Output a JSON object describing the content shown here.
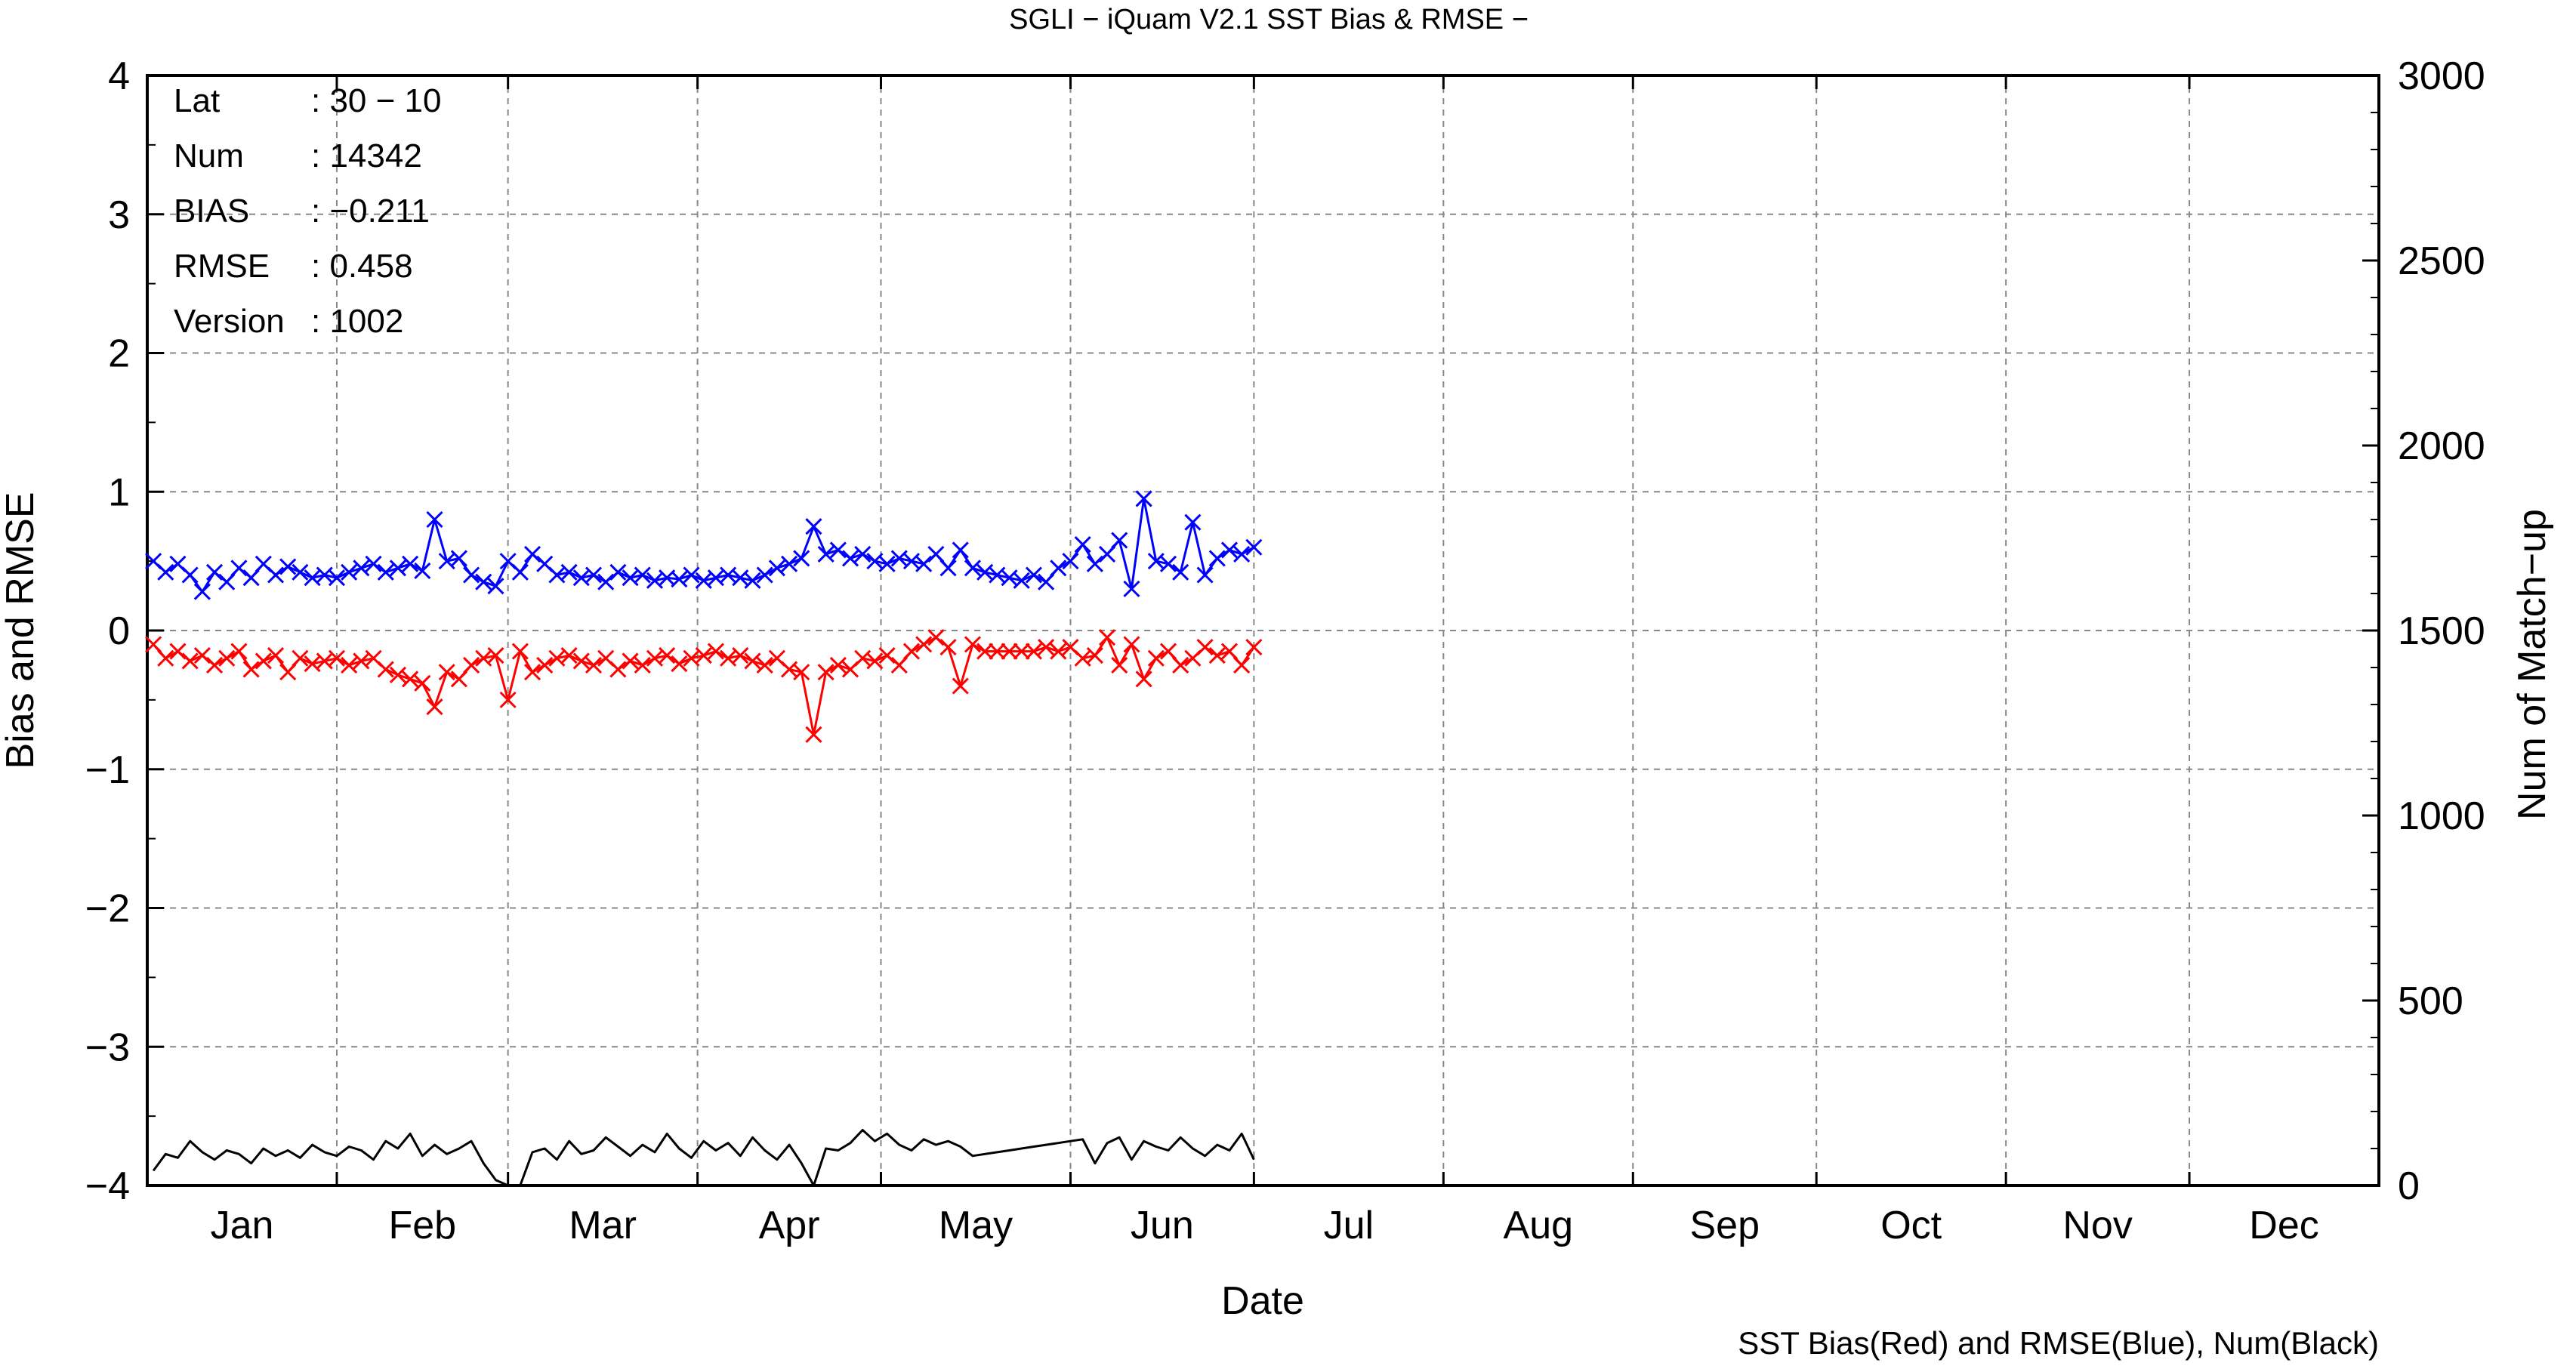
{
  "chart_data": {
    "type": "line",
    "title": "SGLI − iQuam V2.1 SST Bias & RMSE  −",
    "xlabel": "Date",
    "ylabel_left": "Bias and RMSE",
    "ylabel_right": "Num of Match−up",
    "ylim_left": [
      -4,
      4
    ],
    "ylim_right": [
      0,
      3000
    ],
    "yticks_left": [
      "4",
      "3",
      "2",
      "1",
      "0",
      "−1",
      "−2",
      "−3",
      "−4"
    ],
    "yticks_right": [
      "3000",
      "2500",
      "2000",
      "1500",
      "1000",
      "500",
      "0"
    ],
    "months": [
      "Jan",
      "Feb",
      "Mar",
      "Apr",
      "May",
      "Jun",
      "Jul",
      "Aug",
      "Sep",
      "Oct",
      "Nov",
      "Dec"
    ],
    "grid": true,
    "caption": "SST Bias(Red) and RMSE(Blue), Num(Black)",
    "info_box": [
      {
        "label": "Lat",
        "value": ": 30 − 10"
      },
      {
        "label": "Num",
        "value": ": 14342"
      },
      {
        "label": "BIAS",
        "value": ": −0.211"
      },
      {
        "label": "RMSE",
        "value": ": 0.458"
      },
      {
        "label": "Version",
        "value": ": 1002"
      }
    ],
    "colors": {
      "bias": "#ff0000",
      "rmse": "#0000ff",
      "num": "#000000",
      "grid": "#888888"
    },
    "series": [
      {
        "color": "#0000ff",
        "axis": "left",
        "marker": "x",
        "x": [
          1,
          3,
          5,
          7,
          9,
          11,
          13,
          15,
          17,
          19,
          21,
          23,
          25,
          27,
          29,
          31,
          33,
          35,
          37,
          39,
          41,
          43,
          45,
          47,
          49,
          51,
          53,
          55,
          57,
          59,
          61,
          63,
          65,
          67,
          69,
          71,
          73,
          75,
          77,
          79,
          81,
          83,
          85,
          87,
          89,
          91,
          93,
          95,
          97,
          99,
          101,
          103,
          105,
          107,
          109,
          111,
          113,
          115,
          117,
          119,
          121,
          123,
          125,
          127,
          129,
          131,
          133,
          135,
          137,
          139,
          141,
          143,
          145,
          147,
          149,
          151,
          153,
          155,
          157,
          159,
          161,
          163,
          165,
          167,
          169,
          171,
          173,
          175,
          177,
          179,
          181
        ],
        "values": [
          0.5,
          0.42,
          0.48,
          0.4,
          0.28,
          0.42,
          0.35,
          0.45,
          0.38,
          0.48,
          0.4,
          0.46,
          0.42,
          0.38,
          0.4,
          0.38,
          0.42,
          0.45,
          0.48,
          0.42,
          0.45,
          0.48,
          0.43,
          0.8,
          0.5,
          0.52,
          0.4,
          0.35,
          0.32,
          0.5,
          0.42,
          0.55,
          0.48,
          0.4,
          0.42,
          0.38,
          0.4,
          0.35,
          0.42,
          0.38,
          0.4,
          0.36,
          0.38,
          0.37,
          0.4,
          0.36,
          0.38,
          0.4,
          0.38,
          0.36,
          0.4,
          0.45,
          0.48,
          0.52,
          0.75,
          0.55,
          0.58,
          0.52,
          0.55,
          0.5,
          0.48,
          0.52,
          0.5,
          0.48,
          0.55,
          0.45,
          0.58,
          0.45,
          0.42,
          0.4,
          0.38,
          0.36,
          0.4,
          0.35,
          0.45,
          0.5,
          0.62,
          0.48,
          0.55,
          0.65,
          0.3,
          0.95,
          0.5,
          0.48,
          0.42,
          0.78,
          0.4,
          0.52,
          0.58,
          0.55,
          0.6
        ]
      },
      {
        "color": "#ff0000",
        "axis": "left",
        "marker": "x",
        "x": [
          1,
          3,
          5,
          7,
          9,
          11,
          13,
          15,
          17,
          19,
          21,
          23,
          25,
          27,
          29,
          31,
          33,
          35,
          37,
          39,
          41,
          43,
          45,
          47,
          49,
          51,
          53,
          55,
          57,
          59,
          61,
          63,
          65,
          67,
          69,
          71,
          73,
          75,
          77,
          79,
          81,
          83,
          85,
          87,
          89,
          91,
          93,
          95,
          97,
          99,
          101,
          103,
          105,
          107,
          109,
          111,
          113,
          115,
          117,
          119,
          121,
          123,
          125,
          127,
          129,
          131,
          133,
          135,
          137,
          139,
          141,
          143,
          145,
          147,
          149,
          151,
          153,
          155,
          157,
          159,
          161,
          163,
          165,
          167,
          169,
          171,
          173,
          175,
          177,
          179,
          181
        ],
        "values": [
          -0.1,
          -0.2,
          -0.15,
          -0.22,
          -0.18,
          -0.25,
          -0.2,
          -0.15,
          -0.28,
          -0.22,
          -0.18,
          -0.3,
          -0.2,
          -0.24,
          -0.22,
          -0.2,
          -0.25,
          -0.22,
          -0.2,
          -0.28,
          -0.32,
          -0.35,
          -0.38,
          -0.55,
          -0.3,
          -0.35,
          -0.25,
          -0.2,
          -0.18,
          -0.5,
          -0.15,
          -0.3,
          -0.25,
          -0.2,
          -0.18,
          -0.22,
          -0.25,
          -0.2,
          -0.28,
          -0.22,
          -0.25,
          -0.2,
          -0.18,
          -0.24,
          -0.2,
          -0.18,
          -0.15,
          -0.2,
          -0.18,
          -0.22,
          -0.25,
          -0.2,
          -0.28,
          -0.3,
          -0.75,
          -0.3,
          -0.25,
          -0.28,
          -0.2,
          -0.22,
          -0.18,
          -0.25,
          -0.15,
          -0.1,
          -0.05,
          -0.12,
          -0.4,
          -0.1,
          -0.15,
          -0.15,
          -0.15,
          -0.15,
          -0.15,
          -0.12,
          -0.15,
          -0.12,
          -0.2,
          -0.18,
          -0.05,
          -0.25,
          -0.1,
          -0.35,
          -0.2,
          -0.15,
          -0.25,
          -0.2,
          -0.12,
          -0.18,
          -0.15,
          -0.25,
          -0.12
        ]
      },
      {
        "color": "#000000",
        "axis": "right",
        "marker": "none",
        "x": [
          1,
          3,
          5,
          7,
          9,
          11,
          13,
          15,
          17,
          19,
          21,
          23,
          25,
          27,
          29,
          31,
          33,
          35,
          37,
          39,
          41,
          43,
          45,
          47,
          49,
          51,
          53,
          55,
          57,
          59,
          61,
          63,
          65,
          67,
          69,
          71,
          73,
          75,
          77,
          79,
          81,
          83,
          85,
          87,
          89,
          91,
          93,
          95,
          97,
          99,
          101,
          103,
          105,
          107,
          109,
          111,
          113,
          115,
          117,
          119,
          121,
          123,
          125,
          127,
          129,
          131,
          133,
          135,
          137,
          139,
          141,
          143,
          145,
          147,
          149,
          151,
          153,
          155,
          157,
          159,
          161,
          163,
          165,
          167,
          169,
          171,
          173,
          175,
          177,
          179,
          181
        ],
        "values": [
          40,
          85,
          75,
          120,
          90,
          70,
          95,
          85,
          60,
          100,
          80,
          95,
          75,
          110,
          90,
          80,
          105,
          95,
          70,
          120,
          100,
          140,
          80,
          110,
          85,
          100,
          120,
          60,
          15,
          0,
          0,
          90,
          100,
          70,
          120,
          85,
          95,
          130,
          105,
          80,
          110,
          90,
          140,
          100,
          75,
          120,
          95,
          115,
          80,
          130,
          95,
          70,
          110,
          60,
          0,
          100,
          95,
          115,
          150,
          120,
          140,
          110,
          95,
          125,
          110,
          120,
          105,
          80,
          85,
          90,
          95,
          100,
          105,
          110,
          115,
          120,
          125,
          60,
          115,
          130,
          70,
          120,
          105,
          95,
          130,
          100,
          80,
          110,
          95,
          140,
          70
        ]
      }
    ]
  }
}
